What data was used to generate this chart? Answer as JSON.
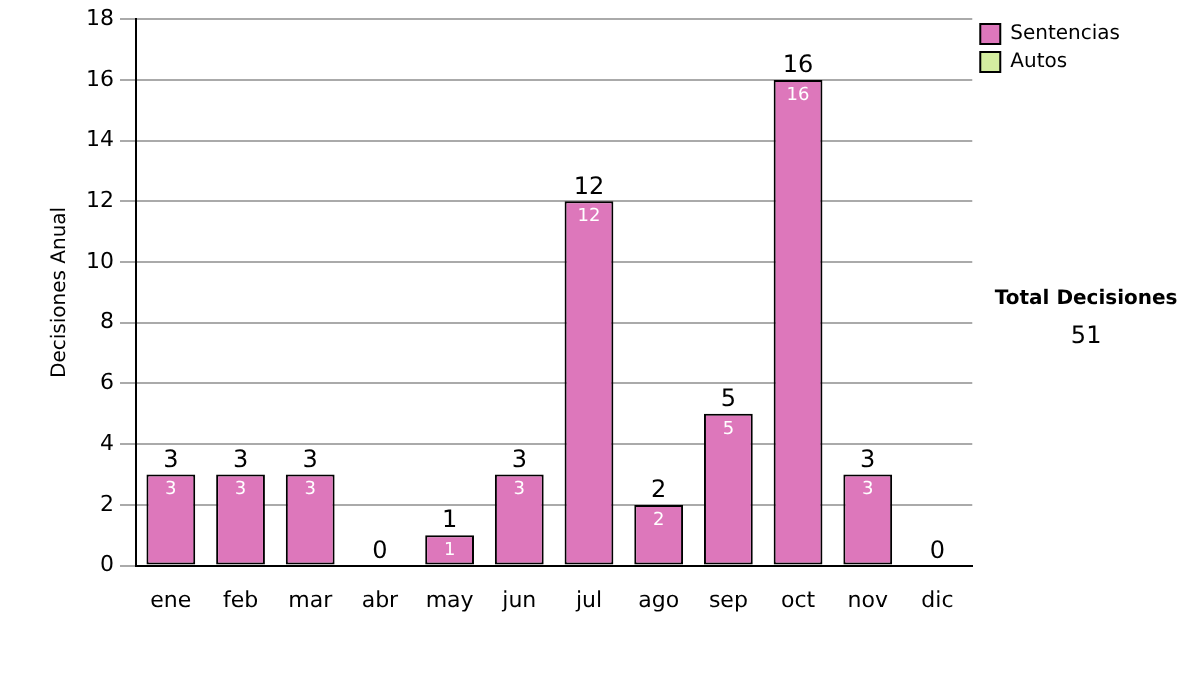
{
  "chart_data": {
    "type": "bar",
    "stacked": true,
    "ylabel": "Decisiones Anual",
    "categories": [
      "ene",
      "feb",
      "mar",
      "abr",
      "may",
      "jun",
      "jul",
      "ago",
      "sep",
      "oct",
      "nov",
      "dic"
    ],
    "series": [
      {
        "name": "Sentencias",
        "color": "#dd77bb",
        "values": [
          3,
          3,
          3,
          0,
          1,
          3,
          12,
          2,
          5,
          16,
          3,
          0
        ],
        "value_labels": [
          "3",
          "3",
          "3",
          null,
          "1",
          "3",
          "12",
          "2",
          "5",
          "16",
          "3",
          null
        ]
      },
      {
        "name": "Autos",
        "color": "#d4eea0",
        "values": [
          0,
          0,
          0,
          0,
          0,
          0,
          0,
          0,
          0,
          0,
          0,
          0
        ]
      }
    ],
    "totals": [
      "3",
      "3",
      "3",
      "0",
      "1",
      "3",
      "12",
      "2",
      "5",
      "16",
      "3",
      "0"
    ],
    "ylim": [
      0,
      18
    ],
    "yticks": [
      0,
      2,
      4,
      6,
      8,
      10,
      12,
      14,
      16,
      18
    ],
    "grid": "y",
    "legend": "right",
    "annotations": [
      "Total Decisiones",
      "51"
    ]
  }
}
